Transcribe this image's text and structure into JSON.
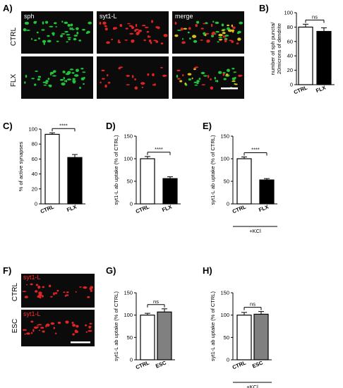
{
  "panels": {
    "A": {
      "letter": "A)",
      "columns": [
        "sph",
        "syt1-L",
        "merge"
      ],
      "rows": [
        "CTRL",
        "FLX"
      ]
    },
    "F": {
      "letter": "F)",
      "rows": [
        {
          "label": "CTRL",
          "stain": "syt1-L"
        },
        {
          "label": "ESC",
          "stain": "syt1-L"
        }
      ]
    }
  },
  "chart_data": [
    {
      "id": "B",
      "letter": "B)",
      "type": "bar",
      "ylabel": [
        "number of sph puncta/",
        "20microns of dendrite"
      ],
      "ylim": [
        0,
        100
      ],
      "yticks": [
        0,
        20,
        40,
        60,
        80,
        100
      ],
      "categories": [
        "CTRL",
        "FLX"
      ],
      "values": [
        80,
        74
      ],
      "errors": [
        4,
        5
      ],
      "fills": [
        "#ffffff",
        "#000000"
      ],
      "significance": "ns",
      "condition": ""
    },
    {
      "id": "C",
      "letter": "C)",
      "type": "bar",
      "ylabel": [
        "% of active synapses"
      ],
      "ylim": [
        0,
        100
      ],
      "yticks": [
        0,
        20,
        40,
        60,
        80,
        100
      ],
      "categories": [
        "CTRL",
        "FLX"
      ],
      "values": [
        93,
        62
      ],
      "errors": [
        2,
        4
      ],
      "fills": [
        "#ffffff",
        "#000000"
      ],
      "significance": "****",
      "condition": ""
    },
    {
      "id": "D",
      "letter": "D)",
      "type": "bar",
      "ylabel": [
        "syt1-L ab uptake (% of CTRL)"
      ],
      "ylim": [
        0,
        150
      ],
      "yticks": [
        0,
        50,
        100,
        150
      ],
      "categories": [
        "CTRL",
        "FLX"
      ],
      "values": [
        100,
        56
      ],
      "errors": [
        5,
        4
      ],
      "fills": [
        "#ffffff",
        "#000000"
      ],
      "significance": "****",
      "condition": ""
    },
    {
      "id": "E",
      "letter": "E)",
      "type": "bar",
      "ylabel": [
        "syt1-L ab uptake (% of CTRL)"
      ],
      "ylim": [
        0,
        150
      ],
      "yticks": [
        0,
        50,
        100,
        150
      ],
      "categories": [
        "CTRL",
        "FLX"
      ],
      "values": [
        100,
        53
      ],
      "errors": [
        4,
        3
      ],
      "fills": [
        "#ffffff",
        "#000000"
      ],
      "significance": "****",
      "condition": "+KCl"
    },
    {
      "id": "G",
      "letter": "G)",
      "type": "bar",
      "ylabel": [
        "syt1-L ab uptake (% of CTRL)"
      ],
      "ylim": [
        0,
        150
      ],
      "yticks": [
        0,
        50,
        100,
        150
      ],
      "categories": [
        "CTRL",
        "ESC"
      ],
      "values": [
        100,
        107
      ],
      "errors": [
        4,
        7
      ],
      "fills": [
        "#ffffff",
        "#808080"
      ],
      "significance": "ns",
      "condition": ""
    },
    {
      "id": "H",
      "letter": "H)",
      "type": "bar",
      "ylabel": [
        "syt1-L ab uptake (% of CTRL)"
      ],
      "ylim": [
        0,
        150
      ],
      "yticks": [
        0,
        50,
        100,
        150
      ],
      "categories": [
        "CTRL",
        "ESC"
      ],
      "values": [
        100,
        102
      ],
      "errors": [
        6,
        6
      ],
      "fills": [
        "#ffffff",
        "#808080"
      ],
      "significance": "ns",
      "condition": "+KCl"
    }
  ]
}
